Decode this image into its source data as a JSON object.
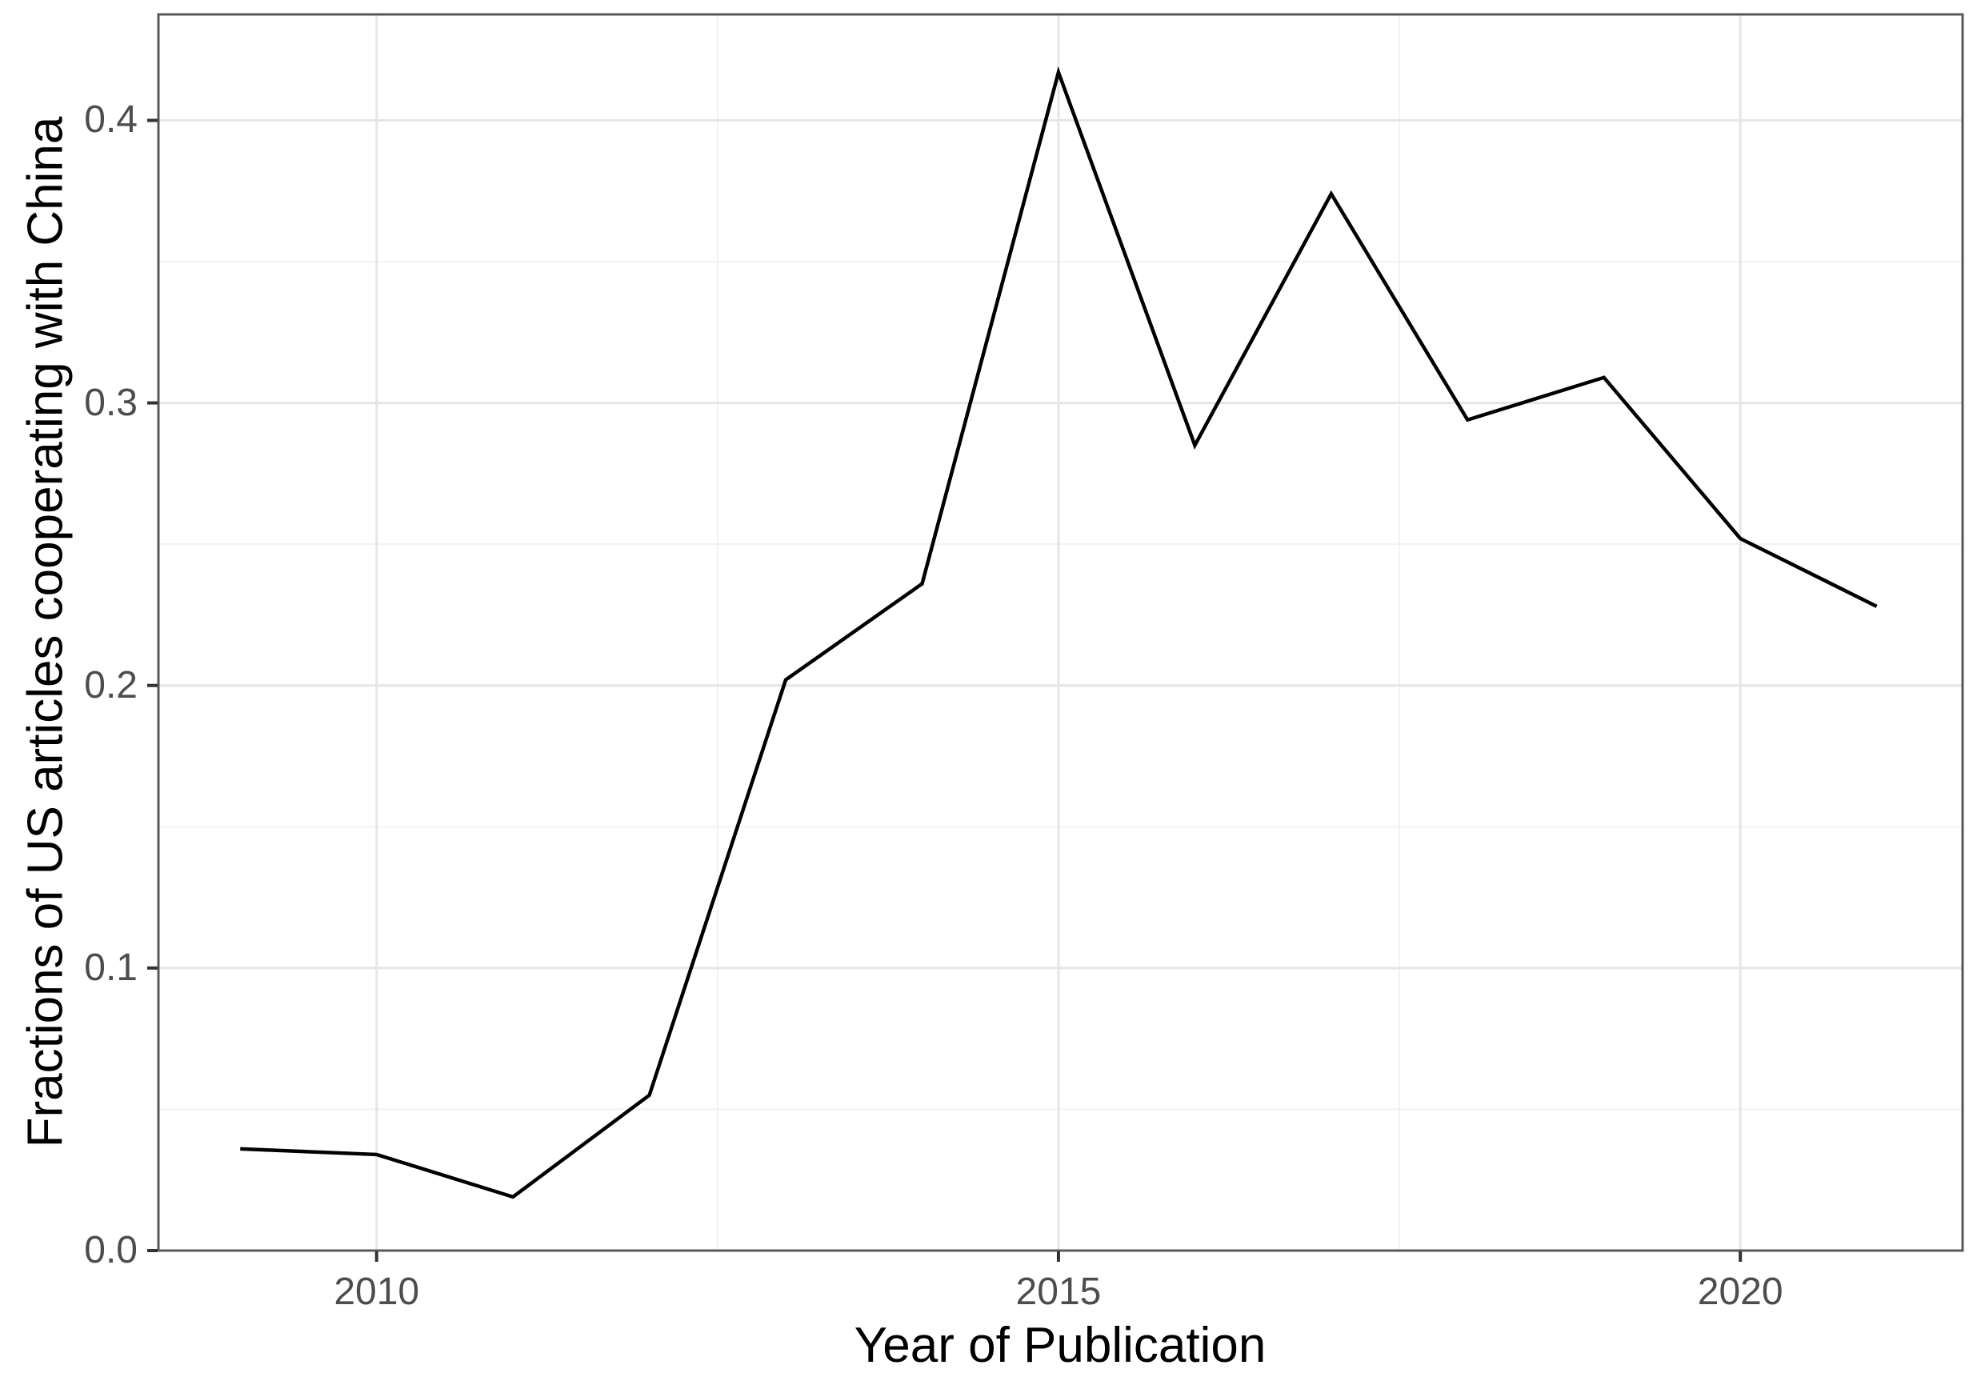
{
  "chart_data": {
    "type": "line",
    "title": "",
    "xlabel": "Year of Publication",
    "ylabel": "Fractions of US articles cooperating with China",
    "x": [
      2009,
      2010,
      2011,
      2012,
      2013,
      2014,
      2015,
      2016,
      2017,
      2018,
      2019,
      2020,
      2021
    ],
    "y": [
      0.036,
      0.034,
      0.019,
      0.055,
      0.202,
      0.236,
      0.417,
      0.285,
      0.374,
      0.294,
      0.309,
      0.252,
      0.228
    ],
    "x_tick_labels": [
      "2010",
      "2015",
      "2020"
    ],
    "x_tick_values": [
      2010,
      2015,
      2020
    ],
    "x_minor_ticks": [
      2012.5,
      2017.5
    ],
    "y_tick_labels": [
      "0.0",
      "0.1",
      "0.2",
      "0.3",
      "0.4"
    ],
    "y_tick_values": [
      0,
      0.1,
      0.2,
      0.3,
      0.4
    ],
    "y_minor_ticks": [
      0.05,
      0.15,
      0.25,
      0.35
    ],
    "xlim": [
      2008.4,
      2021.63
    ],
    "ylim": [
      0,
      0.4375
    ],
    "grid": "major-and-minor",
    "legend": "none",
    "colors": {
      "line": "#000000",
      "panel_border": "#595959",
      "tick_mark": "#333333",
      "tick_label": "#4d4d4d",
      "axis_title": "#000000",
      "grid_major": "#e6e6e6",
      "grid_minor": "#f2f2f2",
      "background": "#ffffff"
    }
  }
}
